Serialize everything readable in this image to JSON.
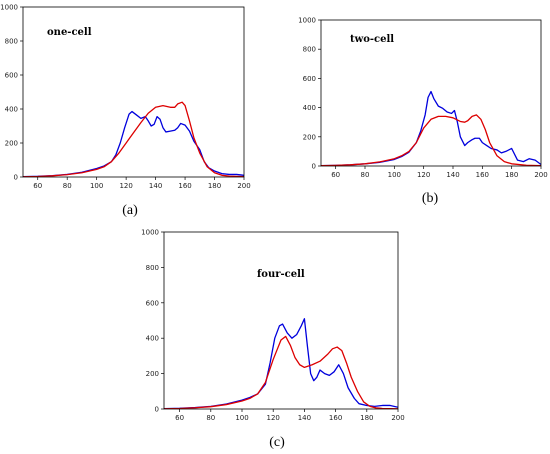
{
  "chart_data": [
    {
      "type": "line",
      "title": "one-cell",
      "caption": "(a)",
      "xlim": [
        50,
        200
      ],
      "ylim": [
        0,
        1000
      ],
      "xticks": [
        60,
        80,
        100,
        120,
        140,
        160,
        180,
        200
      ],
      "yticks": [
        0,
        200,
        400,
        600,
        800,
        1000
      ],
      "grid": false,
      "series": [
        {
          "color": "#0000dd",
          "x": [
            50,
            60,
            70,
            80,
            90,
            100,
            105,
            110,
            113,
            116,
            119,
            122,
            124,
            127,
            130,
            133,
            135,
            137,
            139,
            141,
            143,
            145,
            147,
            150,
            153,
            155,
            157,
            160,
            163,
            166,
            170,
            173,
            176,
            180,
            185,
            190,
            195,
            200
          ],
          "y": [
            2,
            4,
            8,
            15,
            28,
            50,
            65,
            90,
            130,
            200,
            290,
            370,
            385,
            365,
            345,
            355,
            330,
            300,
            310,
            355,
            340,
            290,
            265,
            270,
            275,
            290,
            315,
            305,
            270,
            210,
            160,
            90,
            55,
            35,
            20,
            15,
            15,
            10
          ]
        },
        {
          "color": "#dd0000",
          "x": [
            50,
            60,
            70,
            80,
            90,
            100,
            105,
            110,
            115,
            120,
            125,
            130,
            135,
            140,
            145,
            150,
            153,
            155,
            158,
            160,
            163,
            166,
            170,
            175,
            180,
            185,
            190,
            200
          ],
          "y": [
            1,
            3,
            7,
            14,
            25,
            45,
            60,
            90,
            140,
            200,
            260,
            320,
            375,
            410,
            420,
            410,
            410,
            430,
            440,
            420,
            330,
            230,
            140,
            60,
            25,
            10,
            5,
            2
          ]
        }
      ]
    },
    {
      "type": "line",
      "title": "two-cell",
      "caption": "(b)",
      "xlim": [
        50,
        200
      ],
      "ylim": [
        0,
        1000
      ],
      "xticks": [
        60,
        80,
        100,
        120,
        140,
        160,
        180,
        200
      ],
      "yticks": [
        0,
        200,
        400,
        600,
        800,
        1000
      ],
      "grid": false,
      "series": [
        {
          "color": "#0000dd",
          "x": [
            50,
            60,
            70,
            80,
            90,
            100,
            105,
            110,
            115,
            118,
            121,
            123,
            125,
            127,
            130,
            133,
            136,
            139,
            141,
            143,
            145,
            148,
            150,
            153,
            155,
            158,
            160,
            163,
            166,
            170,
            173,
            176,
            180,
            184,
            188,
            192,
            196,
            200
          ],
          "y": [
            2,
            4,
            8,
            15,
            25,
            45,
            65,
            95,
            160,
            240,
            350,
            470,
            510,
            460,
            410,
            395,
            370,
            360,
            380,
            300,
            200,
            140,
            160,
            180,
            190,
            190,
            160,
            140,
            120,
            110,
            90,
            100,
            120,
            40,
            30,
            50,
            40,
            10
          ]
        },
        {
          "color": "#dd0000",
          "x": [
            50,
            60,
            70,
            80,
            90,
            100,
            105,
            110,
            115,
            120,
            125,
            130,
            135,
            140,
            145,
            148,
            150,
            153,
            156,
            159,
            162,
            165,
            170,
            175,
            180,
            190,
            200
          ],
          "y": [
            2,
            4,
            8,
            15,
            28,
            50,
            70,
            100,
            160,
            260,
            320,
            340,
            340,
            330,
            305,
            300,
            310,
            340,
            350,
            320,
            250,
            160,
            70,
            30,
            15,
            5,
            2
          ]
        }
      ]
    },
    {
      "type": "line",
      "title": "four-cell",
      "caption": "(c)",
      "xlim": [
        50,
        200
      ],
      "ylim": [
        0,
        1000
      ],
      "xticks": [
        60,
        80,
        100,
        120,
        140,
        160,
        180,
        200
      ],
      "yticks": [
        0,
        200,
        400,
        600,
        800,
        1000
      ],
      "grid": false,
      "series": [
        {
          "color": "#0000dd",
          "x": [
            50,
            60,
            70,
            80,
            90,
            100,
            105,
            110,
            115,
            118,
            121,
            124,
            126,
            129,
            132,
            135,
            138,
            140,
            142,
            144,
            146,
            148,
            150,
            153,
            156,
            159,
            162,
            165,
            168,
            172,
            175,
            180,
            185,
            190,
            195,
            200
          ],
          "y": [
            2,
            4,
            8,
            15,
            28,
            50,
            65,
            85,
            140,
            260,
            400,
            470,
            480,
            430,
            400,
            420,
            470,
            510,
            350,
            200,
            160,
            180,
            220,
            200,
            190,
            210,
            250,
            200,
            120,
            60,
            30,
            20,
            15,
            20,
            20,
            10
          ]
        },
        {
          "color": "#dd0000",
          "x": [
            50,
            60,
            70,
            80,
            90,
            100,
            105,
            110,
            115,
            120,
            125,
            128,
            131,
            134,
            137,
            140,
            145,
            150,
            155,
            158,
            161,
            164,
            167,
            170,
            174,
            178,
            182,
            186,
            190,
            200
          ],
          "y": [
            1,
            3,
            7,
            13,
            25,
            45,
            60,
            85,
            150,
            280,
            390,
            410,
            360,
            290,
            250,
            235,
            250,
            270,
            310,
            340,
            350,
            330,
            260,
            180,
            100,
            40,
            15,
            6,
            3,
            1
          ]
        }
      ]
    }
  ]
}
